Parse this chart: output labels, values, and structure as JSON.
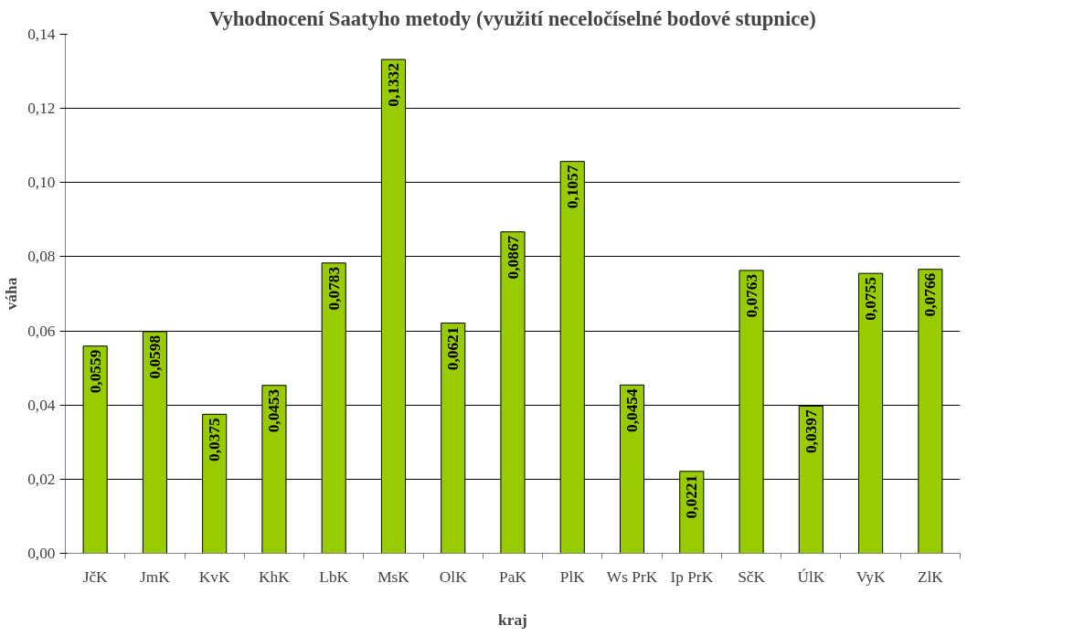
{
  "chart_data": {
    "type": "bar",
    "title": "Vyhodnocení Saatyho metody (využití neceločíselné bodové stupnice)",
    "xlabel": "kraj",
    "ylabel": "váha",
    "categories": [
      "JčK",
      "JmK",
      "KvK",
      "KhK",
      "LbK",
      "MsK",
      "OlK",
      "PaK",
      "PlK",
      "Ws PrK",
      "Ip PrK",
      "SčK",
      "ÚlK",
      "VyK",
      "ZlK"
    ],
    "values": [
      0.0559,
      0.0598,
      0.0375,
      0.0453,
      0.0783,
      0.1332,
      0.0621,
      0.0867,
      0.1057,
      0.0454,
      0.0221,
      0.0763,
      0.0397,
      0.0755,
      0.0766
    ],
    "value_labels": [
      "0,0559",
      "0,0598",
      "0,0375",
      "0,0453",
      "0,0783",
      "0,1332",
      "0,0621",
      "0,0867",
      "0,1057",
      "0,0454",
      "0,0221",
      "0,0763",
      "0,0397",
      "0,0755",
      "0,0766"
    ],
    "color": "#99cc00",
    "ylim": [
      0,
      0.14
    ],
    "yticks": [
      {
        "value": 0,
        "label": "0,00"
      },
      {
        "value": 0.02,
        "label": "0,02"
      },
      {
        "value": 0.04,
        "label": "0,04"
      },
      {
        "value": 0.06,
        "label": "0,06"
      },
      {
        "value": 0.08,
        "label": "0,08"
      },
      {
        "value": 0.1,
        "label": "0,10"
      },
      {
        "value": 0.12,
        "label": "0,12"
      },
      {
        "value": 0.14,
        "label": "0,14"
      }
    ],
    "grid": "y"
  }
}
